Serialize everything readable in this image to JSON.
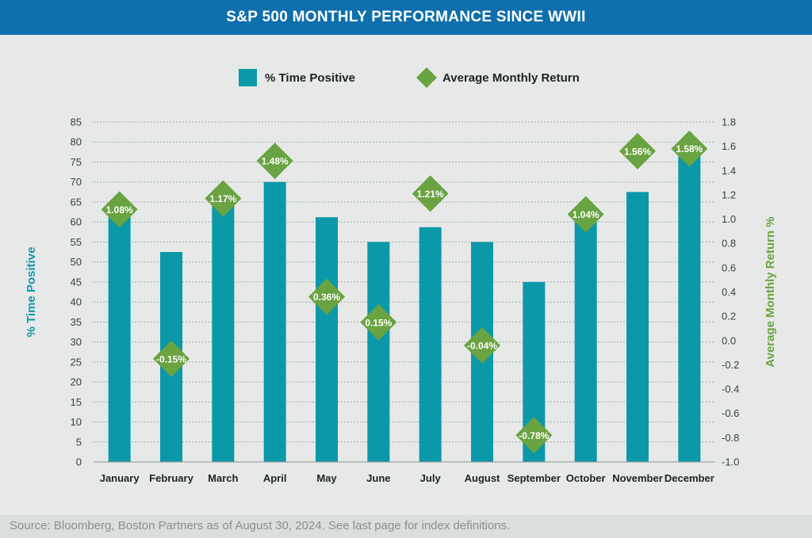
{
  "chart_data": {
    "type": "bar",
    "title": "S&P 500 MONTHLY PERFORMANCE SINCE WWII",
    "categories": [
      "January",
      "February",
      "March",
      "April",
      "May",
      "June",
      "July",
      "August",
      "September",
      "October",
      "November",
      "December"
    ],
    "series": [
      {
        "name": "% Time Positive",
        "type": "bar",
        "axis": "left",
        "values": [
          61.5,
          52.5,
          64.5,
          70.0,
          61.2,
          55.0,
          58.7,
          55.0,
          45.0,
          61.0,
          67.5,
          76.5
        ]
      },
      {
        "name": "Average Monthly Return",
        "type": "scatter",
        "marker": "diamond",
        "axis": "right",
        "values": [
          1.08,
          -0.15,
          1.17,
          1.48,
          0.36,
          0.15,
          1.21,
          -0.04,
          -0.78,
          1.04,
          1.56,
          1.58
        ],
        "labels": [
          "1.08%",
          "-0.15%",
          "1.17%",
          "1.48%",
          "0.36%",
          "0.15%",
          "1.21%",
          "-0.04%",
          "-0.78%",
          "1.04%",
          "1.56%",
          "1.58%"
        ]
      }
    ],
    "ylabel": "% Time Positive",
    "y2label": "Average Monthly Return %",
    "ylim": [
      0,
      85
    ],
    "y2lim": [
      -1.0,
      1.8
    ],
    "yticks": [
      "0",
      "5",
      "10",
      "15",
      "20",
      "25",
      "30",
      "35",
      "40",
      "45",
      "50",
      "55",
      "60",
      "65",
      "70",
      "75",
      "80",
      "85"
    ],
    "y2ticks": [
      "-1.0",
      "-0.8",
      "-0.6",
      "-0.4",
      "-0.2",
      "0.0",
      "0.2",
      "0.4",
      "0.6",
      "0.8",
      "1.0",
      "1.2",
      "1.4",
      "1.6",
      "1.8"
    ],
    "grid": true,
    "legend_position": "top-center",
    "colors": {
      "bar": "#0b98a8",
      "marker": "#6aa341",
      "left_axis_label": "#1496a8",
      "right_axis_label": "#6aa341"
    }
  },
  "footer": {
    "source": "Source: Bloomberg, Boston Partners as of August 30, 2024. See last page for index definitions."
  }
}
